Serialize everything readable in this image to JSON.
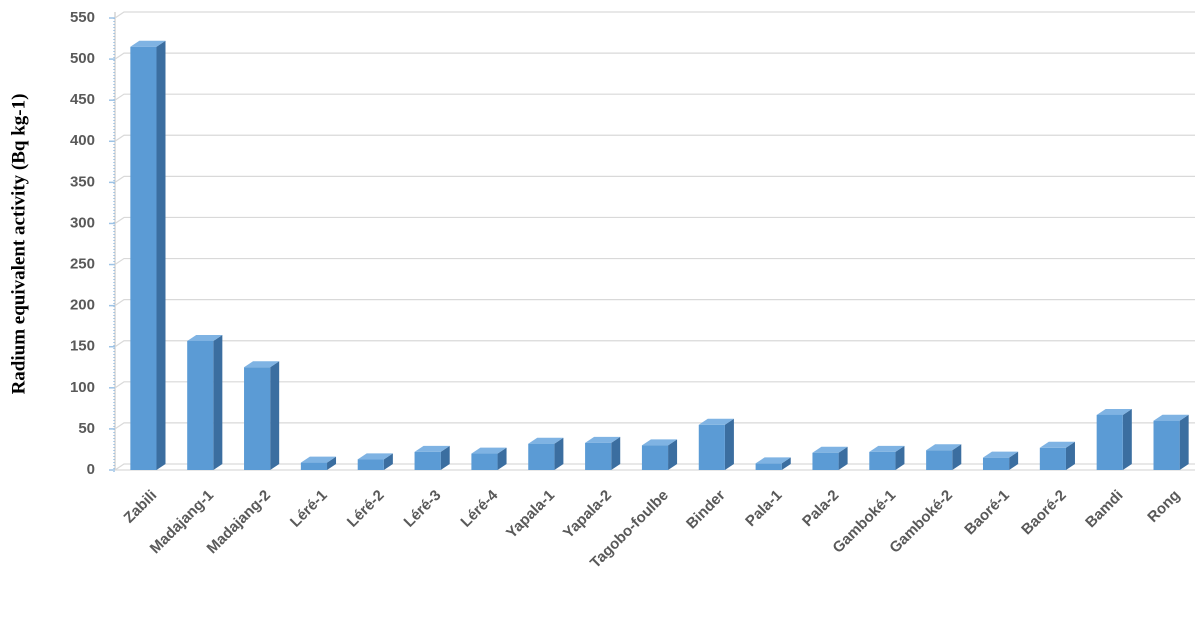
{
  "chart_data": {
    "type": "bar3d",
    "y_label": "Radium equivalent activity (Bq kg-1)",
    "categories": [
      "Zabili",
      "Madajang-1",
      "Madajang-2",
      "Léré-1",
      "Léré-2",
      "Léré-3",
      "Léré-4",
      "Yapala-1",
      "Yapala-2",
      "Tagobo-foulbe",
      "Binder",
      "Pala-1",
      "Pala-2",
      "Gamboké-1",
      "Gamboké-2",
      "Baoré-1",
      "Baoré-2",
      "Bamdi",
      "Rong"
    ],
    "values": [
      515,
      157,
      125,
      9,
      13,
      22,
      20,
      32,
      33,
      30,
      55,
      8,
      21,
      22,
      24,
      15,
      27,
      67,
      60
    ],
    "color": "#5b9bd5",
    "ylim": [
      0,
      550
    ],
    "yticks": [
      0,
      50,
      100,
      150,
      200,
      250,
      300,
      350,
      400,
      450,
      500,
      550
    ],
    "grid": true
  }
}
